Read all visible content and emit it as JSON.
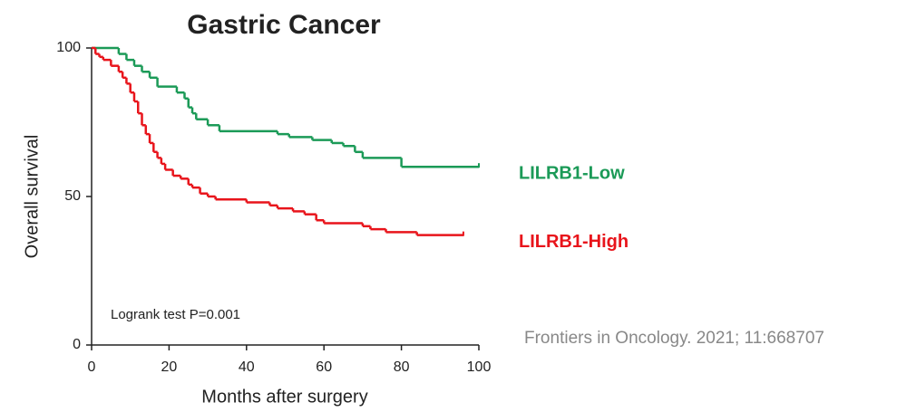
{
  "chart_data": {
    "type": "step",
    "title": "Gastric Cancer",
    "xlabel": "Months after surgery",
    "ylabel": "Overall survival",
    "annotation": "Logrank test P=0.001",
    "source": "Frontiers in Oncology. 2021; 11:668707",
    "xlim": [
      0,
      100
    ],
    "xticks": [
      0,
      20,
      40,
      60,
      80,
      100
    ],
    "ylim": [
      0,
      100
    ],
    "yticks": [
      0,
      50,
      100
    ],
    "series": [
      {
        "name": "LILRB1-Low",
        "color": "#1b9a57",
        "x": [
          0,
          7,
          9,
          11,
          13,
          15,
          17,
          22,
          24,
          25,
          26,
          27,
          30,
          33,
          48,
          51,
          57,
          62,
          65,
          68,
          70,
          80,
          100
        ],
        "values": [
          100,
          98,
          96,
          94,
          92,
          90,
          87,
          85,
          83,
          80,
          78,
          76,
          74,
          72,
          71,
          70,
          69,
          68,
          67,
          65,
          63,
          60,
          60
        ]
      },
      {
        "name": "LILRB1-High",
        "color": "#e8141b",
        "x": [
          0,
          1,
          2,
          3,
          5,
          7,
          8,
          9,
          10,
          11,
          12,
          13,
          14,
          15,
          16,
          17,
          18,
          19,
          21,
          23,
          25,
          26,
          28,
          30,
          32,
          40,
          46,
          48,
          52,
          55,
          58,
          60,
          70,
          72,
          76,
          84,
          96
        ],
        "values": [
          100,
          98,
          97,
          96,
          94,
          92,
          90,
          88,
          85,
          82,
          78,
          74,
          71,
          68,
          65,
          63,
          61,
          59,
          57,
          56,
          54,
          53,
          51,
          50,
          49,
          48,
          47,
          46,
          45,
          44,
          42,
          41,
          40,
          39,
          38,
          37,
          37
        ]
      }
    ]
  }
}
